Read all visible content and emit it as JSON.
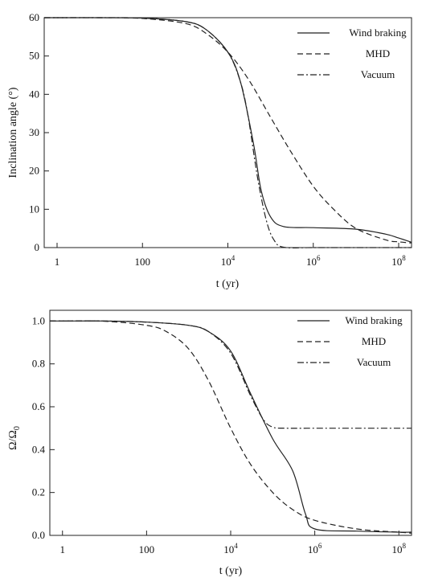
{
  "chart_data": [
    {
      "type": "line",
      "title": "",
      "xlabel": "t (yr)",
      "ylabel": "Inclination angle (°)",
      "xscale": "log",
      "xlim": [
        0.5,
        200000000
      ],
      "ylim": [
        0,
        60
      ],
      "x_ticks": [
        {
          "value": 1,
          "label": "1",
          "exp": ""
        },
        {
          "value": 100,
          "label": "100",
          "exp": ""
        },
        {
          "value": 10000,
          "label": "10",
          "exp": "4"
        },
        {
          "value": 1000000,
          "label": "10",
          "exp": "6"
        },
        {
          "value": 100000000,
          "label": "10",
          "exp": "8"
        }
      ],
      "y_ticks": [
        0,
        10,
        20,
        30,
        40,
        50,
        60
      ],
      "legend_position": "top-right",
      "series": [
        {
          "name": "Wind braking",
          "style": "solid",
          "x": [
            0.5,
            1,
            10,
            100,
            1000,
            3000,
            10000,
            20000,
            40000,
            60000,
            100000,
            200000,
            1000000,
            10000000,
            50000000,
            100000000,
            200000000
          ],
          "y": [
            60,
            60,
            60,
            59.9,
            59,
            57,
            51,
            43,
            27,
            15,
            8,
            5.5,
            5.2,
            4.8,
            3.5,
            2.5,
            1.4
          ]
        },
        {
          "name": "MHD",
          "style": "dashed",
          "x": [
            0.5,
            1,
            10,
            100,
            1000,
            3000,
            10000,
            30000,
            100000,
            300000,
            1000000,
            3000000,
            10000000,
            50000000,
            100000000,
            200000000
          ],
          "y": [
            60,
            60,
            60,
            59.8,
            58.5,
            56,
            51,
            44,
            34,
            25,
            16,
            10,
            5,
            2,
            1.5,
            1.2
          ]
        },
        {
          "name": "Vacuum",
          "style": "dashdot",
          "x": [
            0.5,
            1,
            10,
            100,
            1000,
            3000,
            10000,
            20000,
            30000,
            50000,
            80000,
            120000,
            200000,
            1000000,
            10000000,
            100000000,
            200000000
          ],
          "y": [
            60,
            60,
            60,
            59.9,
            59,
            57,
            51,
            43,
            34,
            18,
            7,
            2,
            0.1,
            0,
            0,
            0,
            0
          ]
        }
      ]
    },
    {
      "type": "line",
      "title": "",
      "xlabel": "t (yr)",
      "ylabel": "Ω/Ω",
      "ylabel_sub": "0",
      "xscale": "log",
      "xlim": [
        0.5,
        200000000
      ],
      "ylim": [
        0,
        1.05
      ],
      "x_ticks": [
        {
          "value": 1,
          "label": "1",
          "exp": ""
        },
        {
          "value": 100,
          "label": "100",
          "exp": ""
        },
        {
          "value": 10000,
          "label": "10",
          "exp": "4"
        },
        {
          "value": 1000000,
          "label": "10",
          "exp": "6"
        },
        {
          "value": 100000000,
          "label": "10",
          "exp": "8"
        }
      ],
      "y_ticks": [
        "0.0",
        "0.2",
        "0.4",
        "0.6",
        "0.8",
        "1.0"
      ],
      "legend_position": "top-right",
      "series": [
        {
          "name": "Wind braking",
          "style": "solid",
          "x": [
            0.5,
            1,
            10,
            100,
            1000,
            3000,
            10000,
            30000,
            100000,
            300000,
            600000,
            1000000,
            10000000,
            100000000,
            200000000
          ],
          "y": [
            1.0,
            1.0,
            1.0,
            0.995,
            0.98,
            0.95,
            0.86,
            0.66,
            0.45,
            0.3,
            0.1,
            0.03,
            0.02,
            0.015,
            0.015
          ]
        },
        {
          "name": "MHD",
          "style": "dashed",
          "x": [
            0.5,
            1,
            10,
            100,
            300,
            1000,
            3000,
            10000,
            30000,
            100000,
            300000,
            1000000,
            10000000,
            100000000,
            200000000
          ],
          "y": [
            1.0,
            1.0,
            0.999,
            0.98,
            0.95,
            0.87,
            0.72,
            0.5,
            0.33,
            0.2,
            0.12,
            0.07,
            0.03,
            0.015,
            0.01
          ]
        },
        {
          "name": "Vacuum",
          "style": "dashdot",
          "x": [
            0.5,
            1,
            10,
            100,
            1000,
            3000,
            10000,
            30000,
            60000,
            100000,
            200000,
            1000000,
            10000000,
            100000000,
            200000000
          ],
          "y": [
            1.0,
            1.0,
            1.0,
            0.995,
            0.98,
            0.95,
            0.85,
            0.65,
            0.54,
            0.505,
            0.5,
            0.5,
            0.5,
            0.5,
            0.5
          ]
        }
      ]
    }
  ]
}
